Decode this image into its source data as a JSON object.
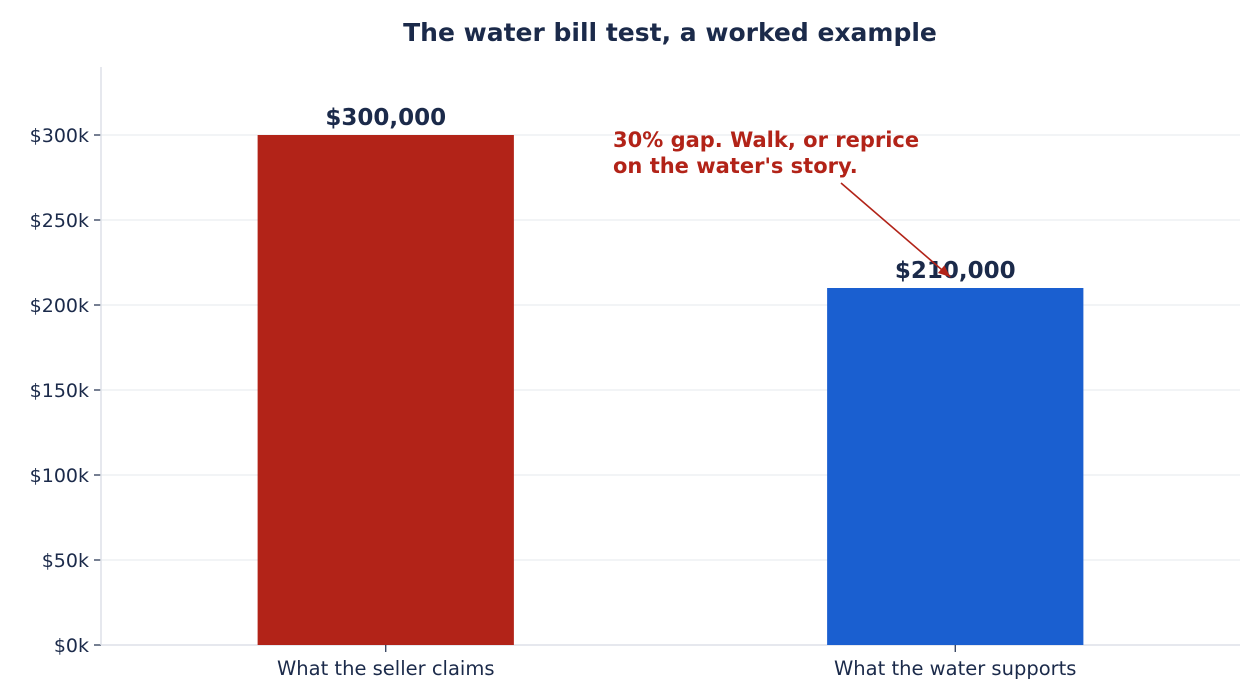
{
  "chart_data": {
    "type": "bar",
    "title": "The water bill test, a worked example",
    "xlabel": "",
    "ylabel": "",
    "categories": [
      "What the seller claims",
      "What the water supports"
    ],
    "values": [
      300000,
      210000
    ],
    "data_labels": [
      "$300,000",
      "$210,000"
    ],
    "ylim": [
      0,
      340000
    ],
    "yticks": [
      0,
      50000,
      100000,
      150000,
      200000,
      250000,
      300000
    ],
    "ytick_labels": [
      "$0k",
      "$50k",
      "$100k",
      "$150k",
      "$200k",
      "$250k",
      "$300k"
    ],
    "grid": "horizontal",
    "annotation": {
      "lines": [
        "30% gap. Walk, or reprice",
        "on the water's story."
      ],
      "points_to_category": "What the water supports"
    }
  },
  "colors": {
    "title": "#1b2a4a",
    "text": "#1b2a4a",
    "bars": [
      "#b22318",
      "#1a5fd0"
    ],
    "annotation": "#b22318",
    "grid": "#eef0f4",
    "axis": "#dde1e8"
  }
}
